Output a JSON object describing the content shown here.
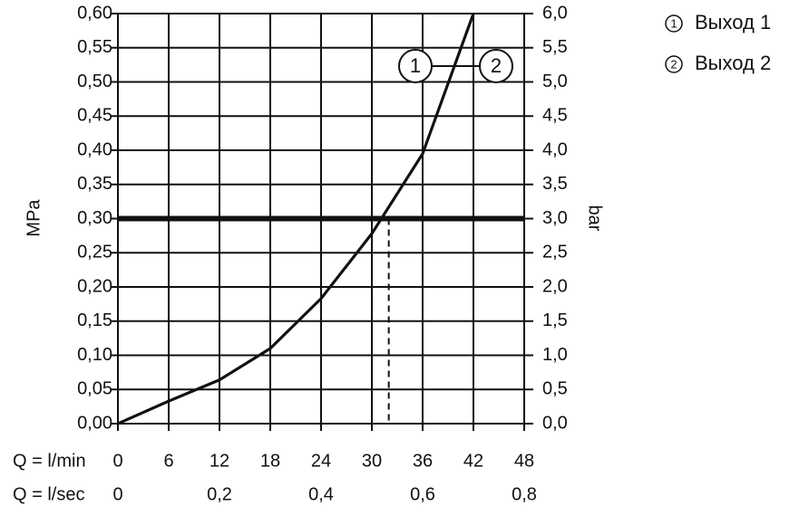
{
  "chart_data": {
    "type": "line",
    "ylabel": "MPa",
    "y2label": "bar",
    "xlabel": "Q = l/min",
    "x2label": "Q = l/sec",
    "xlim": [
      0,
      48
    ],
    "xticks": [
      0,
      6,
      12,
      18,
      24,
      30,
      36,
      42,
      48
    ],
    "x2lim": [
      0,
      0.8
    ],
    "x2ticks": [
      0,
      {
        "value": 0.2,
        "label": "0,2"
      },
      {
        "value": 0.4,
        "label": "0,4"
      },
      {
        "value": 0.6,
        "label": "0,6"
      },
      {
        "value": 0.8,
        "label": "0,8"
      }
    ],
    "ylim": [
      0,
      0.6
    ],
    "yticks": [
      {
        "value": 0,
        "label": "0,00"
      },
      {
        "value": 0.05,
        "label": "0,05"
      },
      {
        "value": 0.1,
        "label": "0,10"
      },
      {
        "value": 0.15,
        "label": "0,15"
      },
      {
        "value": 0.2,
        "label": "0,20"
      },
      {
        "value": 0.25,
        "label": "0,25"
      },
      {
        "value": 0.3,
        "label": "0,30"
      },
      {
        "value": 0.35,
        "label": "0,35"
      },
      {
        "value": 0.4,
        "label": "0,40"
      },
      {
        "value": 0.45,
        "label": "0,45"
      },
      {
        "value": 0.5,
        "label": "0,50"
      },
      {
        "value": 0.55,
        "label": "0,55"
      },
      {
        "value": 0.6,
        "label": "0,60"
      }
    ],
    "y2lim": [
      0,
      6
    ],
    "y2ticks": [
      {
        "value": 0,
        "label": "0,0"
      },
      {
        "value": 0.5,
        "label": "0,5"
      },
      {
        "value": 1,
        "label": "1,0"
      },
      {
        "value": 1.5,
        "label": "1,5"
      },
      {
        "value": 2,
        "label": "2,0"
      },
      {
        "value": 2.5,
        "label": "2,5"
      },
      {
        "value": 3,
        "label": "3,0"
      },
      {
        "value": 3.5,
        "label": "3,5"
      },
      {
        "value": 4,
        "label": "4,0"
      },
      {
        "value": 4.5,
        "label": "4,5"
      },
      {
        "value": 5,
        "label": "5,0"
      },
      {
        "value": 5.5,
        "label": "5,5"
      },
      {
        "value": 6,
        "label": "6,0"
      }
    ],
    "grid": true,
    "threshold": 0.3,
    "operating_point": {
      "x": 32,
      "y": 0.3
    },
    "x": [
      0,
      6,
      12,
      18,
      24,
      30,
      36,
      42
    ],
    "series": [
      {
        "name": "Выход 1",
        "marker": "1",
        "color": "#111111",
        "values": [
          0,
          0.033,
          0.064,
          0.11,
          0.183,
          0.278,
          0.395,
          0.6
        ]
      },
      {
        "name": "Выход 2",
        "marker": "2",
        "color": "#111111",
        "values": [
          0,
          0.033,
          0.064,
          0.11,
          0.183,
          0.278,
          0.395,
          0.6
        ]
      }
    ]
  }
}
